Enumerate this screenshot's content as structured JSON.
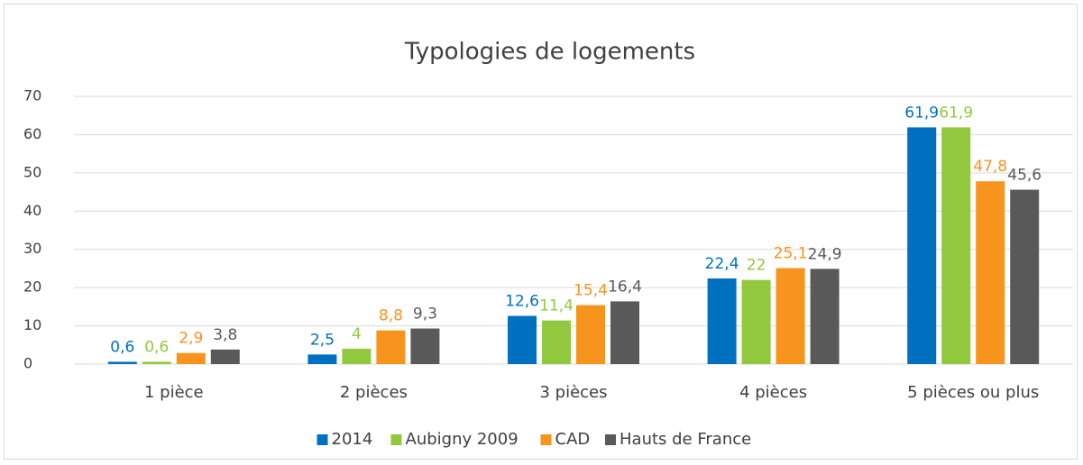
{
  "chart_data": {
    "type": "bar",
    "title": "Typologies de logements",
    "categories": [
      "1 pièce",
      "2 pièces",
      "3 pièces",
      "4 pièces",
      "5 pièces ou plus"
    ],
    "series": [
      {
        "name": "2014",
        "color": "#0070c0",
        "values": [
          0.6,
          2.5,
          12.6,
          22.4,
          61.9
        ],
        "value_labels": [
          "0,6",
          "2,5",
          "12,6",
          "22,4",
          "61,9"
        ]
      },
      {
        "name": "Aubigny 2009",
        "color": "#92c83e",
        "values": [
          0.6,
          4,
          11.4,
          22,
          61.9
        ],
        "value_labels": [
          "0,6",
          "4",
          "11,4",
          "22",
          "61,9"
        ]
      },
      {
        "name": "CAD",
        "color": "#f7941d",
        "values": [
          2.9,
          8.8,
          15.4,
          25.1,
          47.8
        ],
        "value_labels": [
          "2,9",
          "8,8",
          "15,4",
          "25,1",
          "47,8"
        ]
      },
      {
        "name": "Hauts de France",
        "color": "#595959",
        "values": [
          3.8,
          9.3,
          16.4,
          24.9,
          45.6
        ],
        "value_labels": [
          "3,8",
          "9,3",
          "16,4",
          "24,9",
          "45,6"
        ]
      }
    ],
    "ylim": [
      0,
      70
    ],
    "yticks": [
      0,
      10,
      20,
      30,
      40,
      50,
      60,
      70
    ],
    "grid": true,
    "legend": "bottom"
  }
}
